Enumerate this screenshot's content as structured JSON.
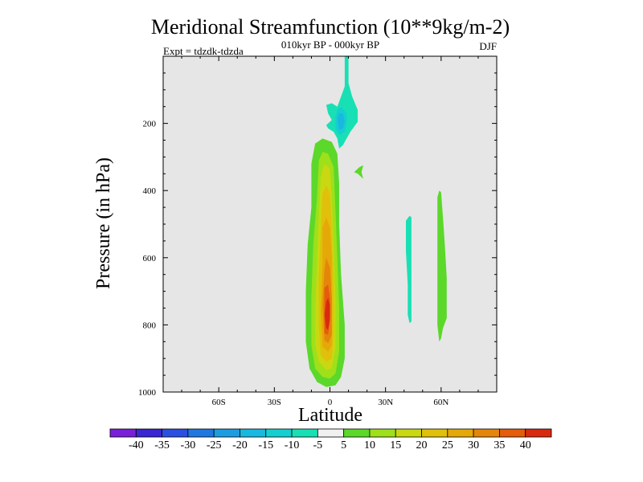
{
  "chart_data": {
    "type": "contour",
    "title": "Meridional Streamfunction (10**9kg/m-2)",
    "subtitle": "010kyr BP - 000kyr BP",
    "experiment": "Expt = tdzdk-tdzda",
    "season": "DJF",
    "xlabel": "Latitude",
    "ylabel": "Pressure (in hPa)",
    "xlim": [
      -90,
      90
    ],
    "ylim": [
      1000,
      0
    ],
    "x_ticks": [
      {
        "value": -60,
        "label": "60S"
      },
      {
        "value": -30,
        "label": "30S"
      },
      {
        "value": 0,
        "label": "0"
      },
      {
        "value": 30,
        "label": "30N"
      },
      {
        "value": 60,
        "label": "60N"
      }
    ],
    "y_ticks": [
      {
        "value": 200,
        "label": "200"
      },
      {
        "value": 400,
        "label": "400"
      },
      {
        "value": 600,
        "label": "600"
      },
      {
        "value": 800,
        "label": "800"
      },
      {
        "value": 1000,
        "label": "1000"
      }
    ],
    "background_color": "#e6e6e6",
    "colorbar": {
      "levels": [
        -40,
        -35,
        -30,
        -25,
        -20,
        -15,
        -10,
        -5,
        5,
        10,
        15,
        20,
        25,
        30,
        35,
        40
      ],
      "labels": [
        "-40",
        "-35",
        "-30",
        "-25",
        "-20",
        "-15",
        "-10",
        "-5",
        "5",
        "10",
        "15",
        "20",
        "25",
        "30",
        "35",
        "40"
      ],
      "colors": [
        "#7a1fd8",
        "#3a26d2",
        "#2b4fe0",
        "#1f77e2",
        "#1c9de0",
        "#18b8e0",
        "#14cfd0",
        "#18e0b4",
        "#f0f0f0",
        "#5bd82a",
        "#9ee01a",
        "#c9d811",
        "#e0c00a",
        "#e4a808",
        "#e4860a",
        "#e45c0c",
        "#d82a10"
      ]
    },
    "regions": [
      {
        "name": "positive-cell-5",
        "value": 5,
        "color": "#5bd82a",
        "points": [
          [
            -11,
            930
          ],
          [
            -7,
            970
          ],
          [
            -2,
            985
          ],
          [
            3,
            980
          ],
          [
            6,
            955
          ],
          [
            8,
            900
          ],
          [
            8,
            800
          ],
          [
            6,
            650
          ],
          [
            5,
            500
          ],
          [
            5,
            380
          ],
          [
            4,
            290
          ],
          [
            1,
            255
          ],
          [
            -4,
            245
          ],
          [
            -8,
            260
          ],
          [
            -10,
            320
          ],
          [
            -10,
            450
          ],
          [
            -12,
            560
          ],
          [
            -13,
            700
          ],
          [
            -13,
            850
          ]
        ]
      },
      {
        "name": "positive-cell-10",
        "value": 10,
        "color": "#9ee01a",
        "points": [
          [
            -8,
            930
          ],
          [
            -4,
            955
          ],
          [
            0,
            960
          ],
          [
            3,
            945
          ],
          [
            5,
            880
          ],
          [
            5,
            750
          ],
          [
            4,
            600
          ],
          [
            3,
            460
          ],
          [
            2,
            330
          ],
          [
            -1,
            290
          ],
          [
            -4,
            285
          ],
          [
            -6,
            310
          ],
          [
            -7,
            420
          ],
          [
            -9,
            560
          ],
          [
            -10,
            720
          ],
          [
            -10,
            860
          ]
        ]
      },
      {
        "name": "positive-cell-15",
        "value": 15,
        "color": "#c9d811",
        "points": [
          [
            -6,
            910
          ],
          [
            -2,
            935
          ],
          [
            1,
            930
          ],
          [
            3,
            870
          ],
          [
            3,
            720
          ],
          [
            2,
            560
          ],
          [
            1,
            420
          ],
          [
            0,
            335
          ],
          [
            -3,
            320
          ],
          [
            -5,
            360
          ],
          [
            -6,
            470
          ],
          [
            -7,
            620
          ],
          [
            -8,
            760
          ],
          [
            -8,
            860
          ]
        ]
      },
      {
        "name": "positive-cell-20",
        "value": 20,
        "color": "#e0c00a",
        "points": [
          [
            -5,
            890
          ],
          [
            -2,
            910
          ],
          [
            1,
            900
          ],
          [
            2,
            820
          ],
          [
            2,
            680
          ],
          [
            1,
            520
          ],
          [
            0,
            410
          ],
          [
            -2,
            385
          ],
          [
            -4,
            410
          ],
          [
            -5,
            520
          ],
          [
            -6,
            660
          ],
          [
            -6,
            800
          ]
        ]
      },
      {
        "name": "positive-cell-25",
        "value": 25,
        "color": "#e4a808",
        "points": [
          [
            -4,
            865
          ],
          [
            -1,
            880
          ],
          [
            1,
            860
          ],
          [
            1,
            740
          ],
          [
            1,
            600
          ],
          [
            0,
            510
          ],
          [
            -2,
            480
          ],
          [
            -4,
            510
          ],
          [
            -4,
            620
          ],
          [
            -5,
            760
          ]
        ]
      },
      {
        "name": "positive-cell-30",
        "value": 30,
        "color": "#e4860a",
        "points": [
          [
            -3,
            845
          ],
          [
            -1,
            855
          ],
          [
            1,
            830
          ],
          [
            1,
            720
          ],
          [
            0,
            630
          ],
          [
            -2,
            600
          ],
          [
            -3,
            640
          ],
          [
            -4,
            740
          ]
        ]
      },
      {
        "name": "positive-cell-35",
        "value": 35,
        "color": "#e45c0c",
        "points": [
          [
            -3,
            825
          ],
          [
            -1,
            830
          ],
          [
            0,
            790
          ],
          [
            0,
            720
          ],
          [
            -1,
            680
          ],
          [
            -3,
            690
          ],
          [
            -3,
            760
          ]
        ]
      },
      {
        "name": "positive-cell-40",
        "value": 40,
        "color": "#d82a10",
        "points": [
          [
            -2,
            810
          ],
          [
            -1,
            815
          ],
          [
            0,
            780
          ],
          [
            0,
            740
          ],
          [
            -1,
            720
          ],
          [
            -2,
            730
          ],
          [
            -3,
            770
          ]
        ]
      },
      {
        "name": "upper-negative-cell-5",
        "value": -5,
        "color": "#18e0b4",
        "points": [
          [
            8,
            0
          ],
          [
            10,
            0
          ],
          [
            10,
            80
          ],
          [
            12,
            120
          ],
          [
            15,
            160
          ],
          [
            15,
            195
          ],
          [
            11,
            225
          ],
          [
            7,
            265
          ],
          [
            5,
            275
          ],
          [
            4,
            245
          ],
          [
            2,
            225
          ],
          [
            -1,
            215
          ],
          [
            -2,
            205
          ],
          [
            1,
            190
          ],
          [
            -1,
            170
          ],
          [
            -2,
            145
          ],
          [
            1,
            140
          ],
          [
            4,
            150
          ],
          [
            6,
            120
          ],
          [
            8,
            90
          ]
        ]
      },
      {
        "name": "upper-negative-cell-10",
        "value": -10,
        "color": "#14cfd0",
        "points": [
          [
            3,
            180
          ],
          [
            4,
            160
          ],
          [
            6,
            150
          ],
          [
            9,
            170
          ],
          [
            9,
            200
          ],
          [
            8,
            225
          ],
          [
            5,
            235
          ],
          [
            3,
            215
          ]
        ]
      },
      {
        "name": "upper-negative-cell-15",
        "value": -15,
        "color": "#18b8e0",
        "points": [
          [
            4,
            185
          ],
          [
            5,
            170
          ],
          [
            7,
            170
          ],
          [
            8,
            195
          ],
          [
            7,
            215
          ],
          [
            5,
            220
          ]
        ]
      },
      {
        "name": "upper-positive-spot-5",
        "value": 5,
        "color": "#5bd82a",
        "points": [
          [
            13,
            345
          ],
          [
            16,
            330
          ],
          [
            18,
            325
          ],
          [
            17,
            345
          ],
          [
            18,
            365
          ],
          [
            15,
            350
          ]
        ]
      },
      {
        "name": "nh-negative-strip-5",
        "value": -5,
        "color": "#18e0b4",
        "points": [
          [
            41,
            490
          ],
          [
            43,
            475
          ],
          [
            44,
            480
          ],
          [
            44,
            560
          ],
          [
            44,
            700
          ],
          [
            44,
            790
          ],
          [
            43,
            795
          ],
          [
            42,
            770
          ],
          [
            42,
            680
          ],
          [
            41,
            580
          ]
        ]
      },
      {
        "name": "nh-positive-strip-5",
        "value": 5,
        "color": "#5bd82a",
        "points": [
          [
            58,
            420
          ],
          [
            59,
            400
          ],
          [
            60,
            405
          ],
          [
            61,
            480
          ],
          [
            62,
            560
          ],
          [
            63,
            660
          ],
          [
            63,
            780
          ],
          [
            61,
            810
          ],
          [
            60,
            840
          ],
          [
            59,
            850
          ],
          [
            58,
            800
          ],
          [
            58,
            700
          ],
          [
            58,
            560
          ]
        ]
      }
    ]
  }
}
